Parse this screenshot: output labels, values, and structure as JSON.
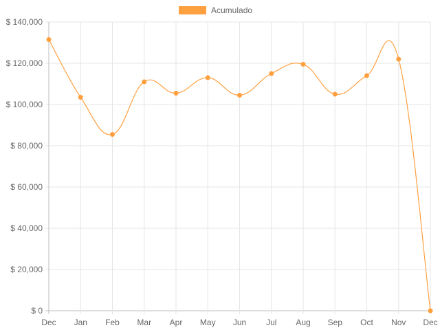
{
  "chart_data": {
    "type": "line",
    "categories": [
      "Dec",
      "Jan",
      "Feb",
      "Mar",
      "Apr",
      "May",
      "Jun",
      "Jul",
      "Aug",
      "Sep",
      "Oct",
      "Nov",
      "Dec"
    ],
    "series": [
      {
        "name": "Acumulado",
        "values": [
          131500,
          103500,
          85500,
          111000,
          105500,
          113000,
          104500,
          115000,
          119500,
          105000,
          114000,
          122000,
          0
        ]
      }
    ],
    "ylim": [
      0,
      140000
    ],
    "yticks": [
      0,
      20000,
      40000,
      60000,
      80000,
      100000,
      120000,
      140000
    ],
    "ytick_labels": [
      "$ 0",
      "$ 20,000",
      "$ 40,000",
      "$ 60,000",
      "$ 80,000",
      "$ 100,000",
      "$ 120,000",
      "$ 140,000"
    ],
    "legend_position": "top-center",
    "grid": true,
    "line_color": "#FFA040",
    "point_color": "#FFA040"
  }
}
